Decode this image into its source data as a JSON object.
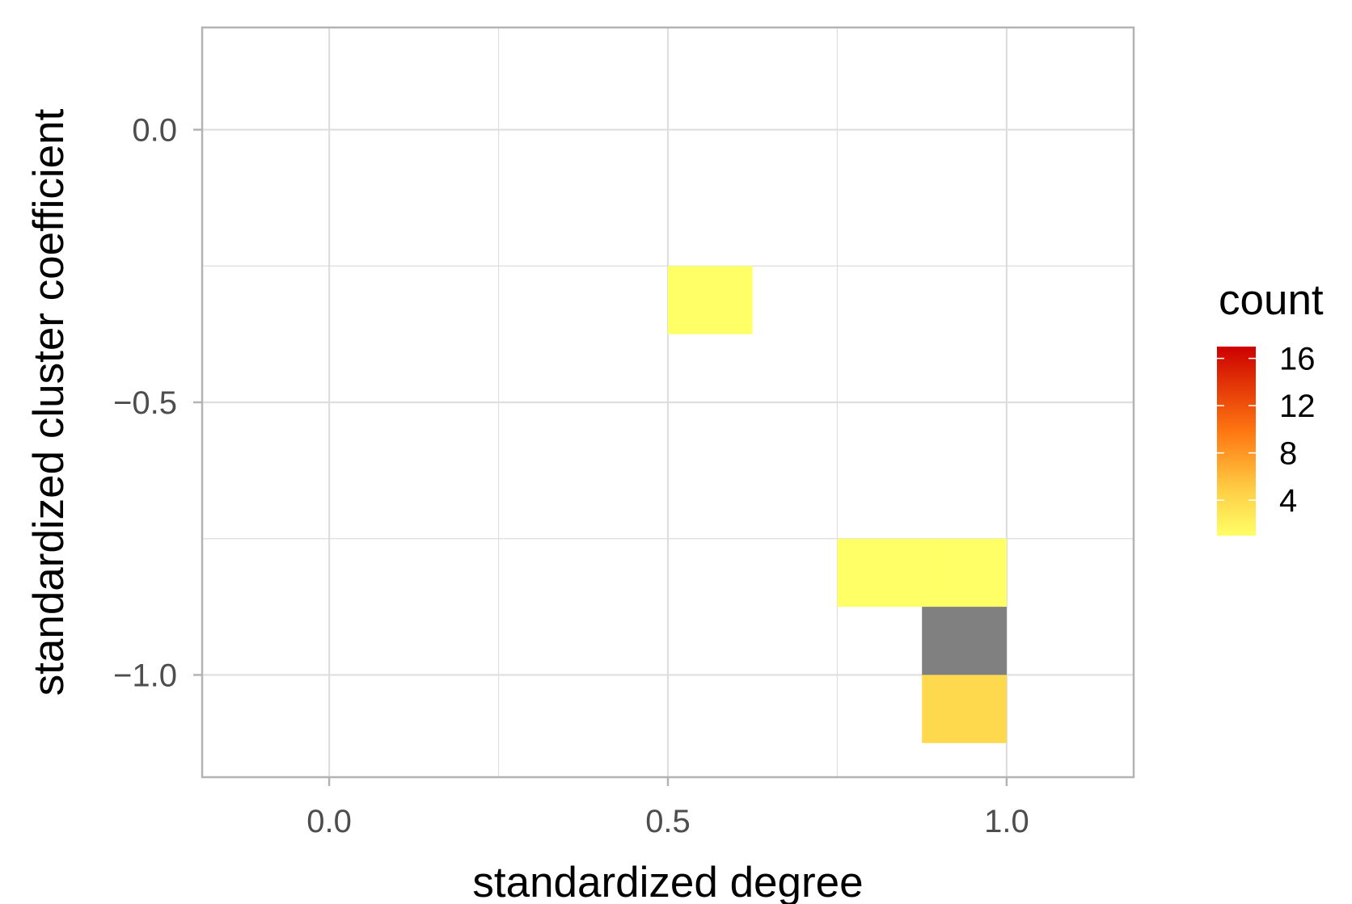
{
  "chart_data": {
    "type": "heatmap",
    "xlabel": "standardized degree",
    "ylabel": "standardized cluster coefficient",
    "xlim": [
      -0.1875,
      1.1875
    ],
    "ylim": [
      -1.1875,
      0.1875
    ],
    "x_ticks": [
      0.0,
      0.5,
      1.0
    ],
    "x_tick_labels": [
      "0.0",
      "0.5",
      "1.0"
    ],
    "y_ticks": [
      0.0,
      -0.5,
      -1.0
    ],
    "y_tick_labels": [
      "0.0",
      "−0.5",
      "−1.0"
    ],
    "grid": true,
    "bin_width": 0.125,
    "bins": [
      {
        "x": [
          0.5,
          0.625
        ],
        "y": [
          -0.375,
          -0.25
        ],
        "count": 1
      },
      {
        "x": [
          0.75,
          0.875
        ],
        "y": [
          -0.875,
          -0.75
        ],
        "count": 1
      },
      {
        "x": [
          0.875,
          1.0
        ],
        "y": [
          -0.875,
          -0.75
        ],
        "count": 1
      },
      {
        "x": [
          0.875,
          1.0
        ],
        "y": [
          -1.0,
          -0.875
        ],
        "count": null
      },
      {
        "x": [
          0.875,
          1.0
        ],
        "y": [
          -1.125,
          -1.0
        ],
        "count": 4
      }
    ],
    "legend": {
      "title": "count",
      "position": "right",
      "range": [
        1,
        17
      ],
      "breaks": [
        4,
        8,
        12,
        16
      ],
      "break_labels": [
        "4",
        "8",
        "12",
        "16"
      ]
    },
    "colors": {
      "low": "#ffff66",
      "mid_low": "#ffcc44",
      "mid": "#ff7711",
      "high": "#cc0000",
      "na": "#808080",
      "grid": "#dedede",
      "border": "#b3b3b3"
    }
  }
}
